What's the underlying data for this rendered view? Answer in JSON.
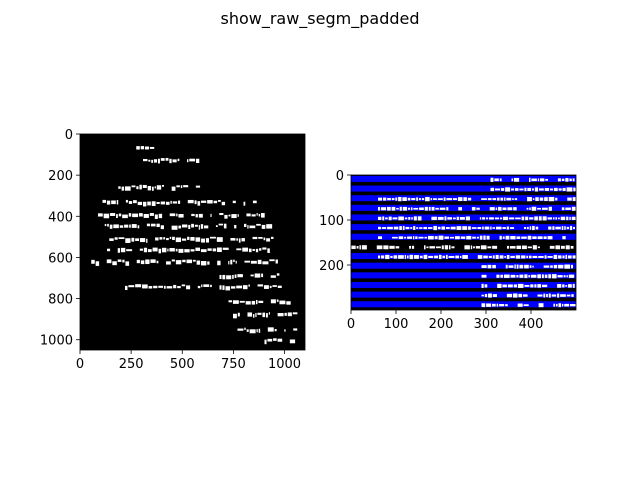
{
  "figure": {
    "title": "show_raw_segm_padded"
  },
  "left_axes": {
    "x_ticks": [
      "0",
      "250",
      "500",
      "750",
      "1000"
    ],
    "y_ticks": [
      "0",
      "200",
      "400",
      "600",
      "800",
      "1000"
    ],
    "xlim": [
      0,
      1100
    ],
    "ylim": [
      1050,
      0
    ],
    "image_desc_name": "raw-binary-scroll-fragment"
  },
  "right_axes": {
    "x_ticks": [
      "0",
      "100",
      "200",
      "300",
      "400"
    ],
    "y_ticks": [
      "0",
      "100",
      "200"
    ],
    "xlim": [
      0,
      500
    ],
    "ylim": [
      300,
      0
    ],
    "band_color": "#0000ff",
    "image_desc_name": "segmented-padded-lines"
  },
  "colors": {
    "background": "#ffffff",
    "image_bg": "#000000",
    "ink": "#ffffff",
    "band": "#0000ff",
    "axis": "#000000"
  }
}
